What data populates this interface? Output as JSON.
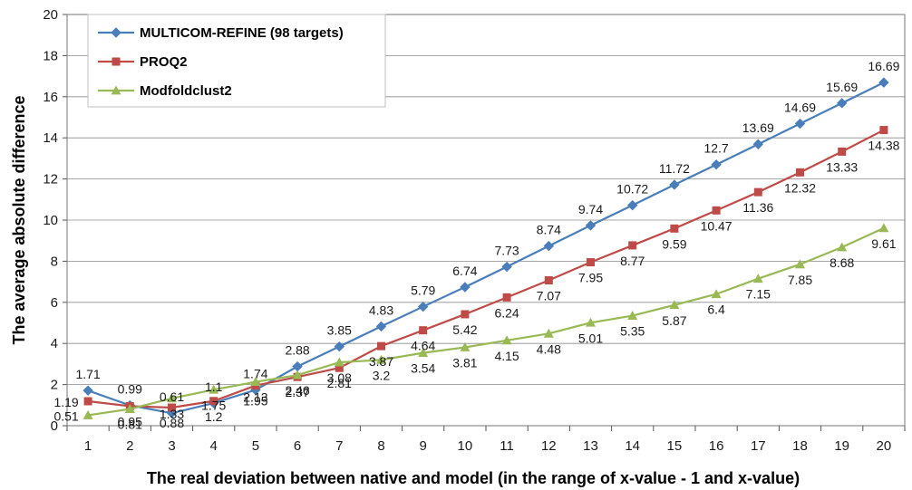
{
  "chart_data": {
    "type": "line",
    "title": "",
    "xlabel": "The real deviation between native and model (in the range of x-value - 1 and x-value)",
    "ylabel": "The  average absolute difference",
    "x": [
      1,
      2,
      3,
      4,
      5,
      6,
      7,
      8,
      9,
      10,
      11,
      12,
      13,
      14,
      15,
      16,
      17,
      18,
      19,
      20
    ],
    "ylim": [
      0,
      20
    ],
    "yticks": [
      0,
      2,
      4,
      6,
      8,
      10,
      12,
      14,
      16,
      18,
      20
    ],
    "grid": "horizontal",
    "legend": "top-left",
    "series": [
      {
        "name": "MULTICOM-REFINE (98 targets)",
        "color": "#4a7ebb",
        "marker": "diamond",
        "values": [
          1.71,
          0.99,
          0.61,
          1.1,
          1.74,
          2.88,
          3.85,
          4.83,
          5.79,
          6.74,
          7.73,
          8.74,
          9.74,
          10.72,
          11.72,
          12.7,
          13.69,
          14.69,
          15.69,
          16.69
        ]
      },
      {
        "name": "PROQ2",
        "color": "#be4b48",
        "marker": "square",
        "values": [
          1.19,
          0.95,
          0.88,
          1.2,
          1.95,
          2.37,
          2.81,
          3.87,
          4.64,
          5.42,
          6.24,
          7.07,
          7.95,
          8.77,
          9.59,
          10.47,
          11.36,
          12.32,
          13.33,
          14.38
        ]
      },
      {
        "name": "Modfoldclust2",
        "color": "#98b954",
        "marker": "triangle",
        "values": [
          0.51,
          0.81,
          1.33,
          1.75,
          2.13,
          2.46,
          3.08,
          3.2,
          3.54,
          3.81,
          4.15,
          4.48,
          5.01,
          5.35,
          5.87,
          6.4,
          7.15,
          7.85,
          8.68,
          9.61
        ]
      }
    ]
  }
}
